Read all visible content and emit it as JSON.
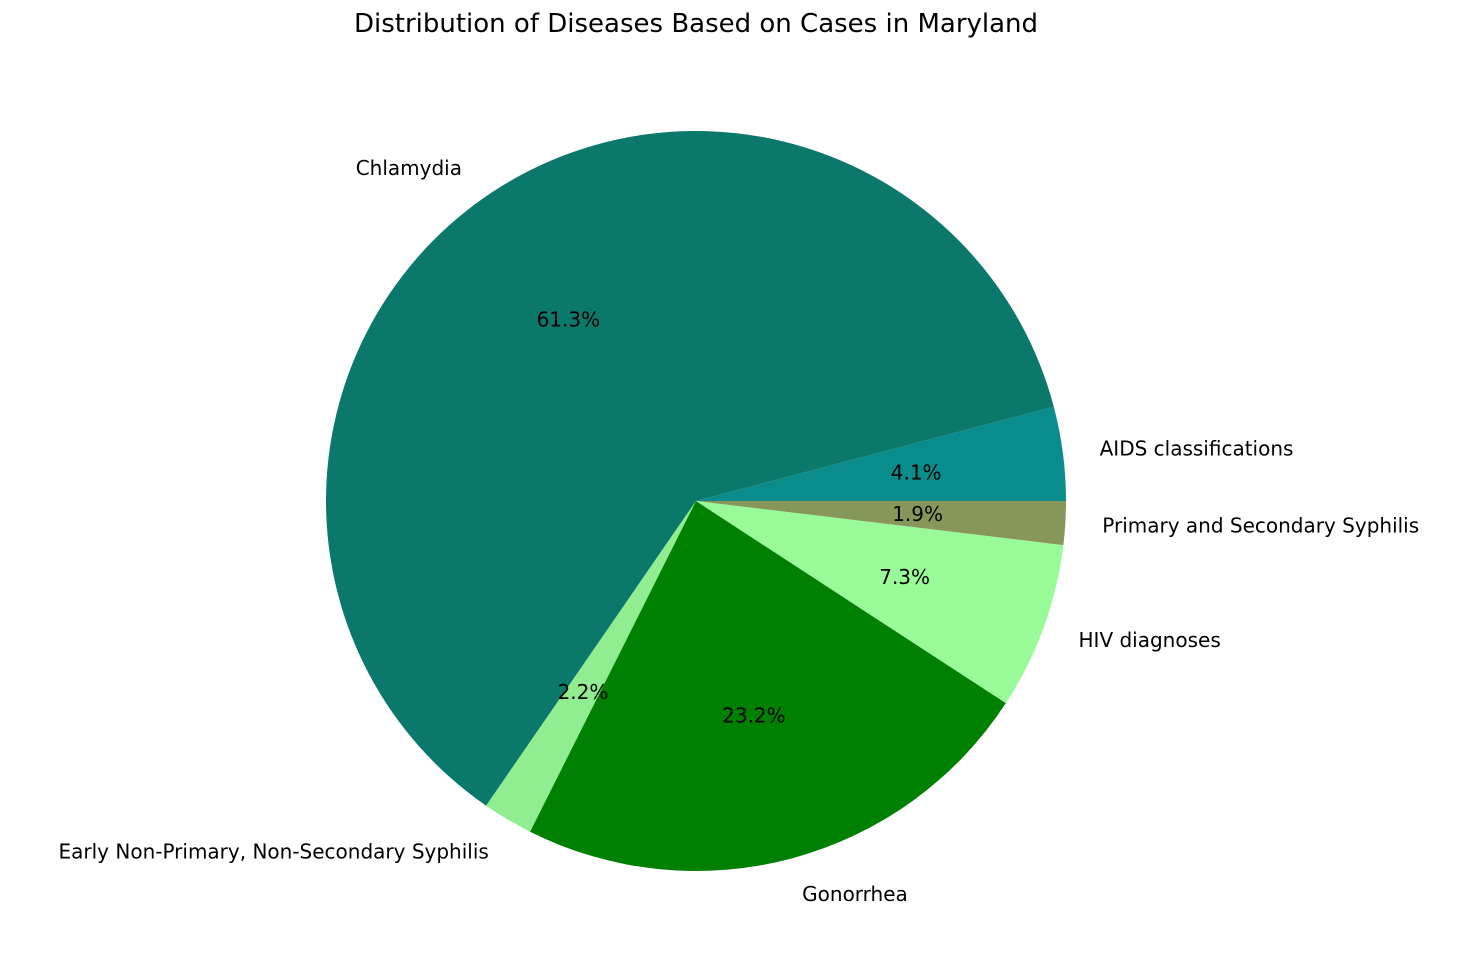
{
  "chart_data": {
    "type": "pie",
    "title": "Distribution of Diseases Based on Cases in Maryland",
    "slices": [
      {
        "label": "AIDS classifications",
        "percent": 4.1,
        "percent_label": "4.1%",
        "color": "#0a8c8c"
      },
      {
        "label": "Chlamydia",
        "percent": 61.3,
        "percent_label": "61.3%",
        "color": "#0a786a"
      },
      {
        "label": "Early Non-Primary, Non-Secondary Syphilis",
        "percent": 2.2,
        "percent_label": "2.2%",
        "color": "#90ee90"
      },
      {
        "label": "Gonorrhea",
        "percent": 23.2,
        "percent_label": "23.2%",
        "color": "#008000"
      },
      {
        "label": "HIV diagnoses",
        "percent": 7.3,
        "percent_label": "7.3%",
        "color": "#98fb98"
      },
      {
        "label": "Primary and Secondary Syphilis",
        "percent": 1.9,
        "percent_label": "1.9%",
        "color": "#87975a"
      }
    ],
    "start_angle_deg": 0,
    "direction": "counterclockwise",
    "legend": "none"
  }
}
